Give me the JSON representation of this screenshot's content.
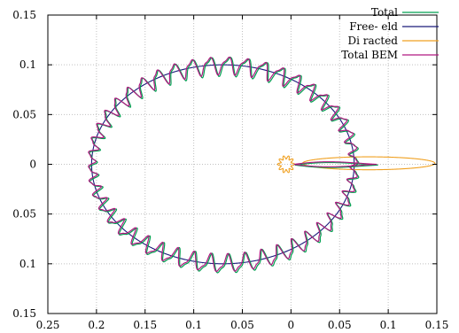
{
  "chart_data": {
    "type": "line",
    "title": "",
    "xlabel": "",
    "ylabel": "",
    "xlim": [
      -0.25,
      0.15
    ],
    "ylim": [
      -0.15,
      0.15
    ],
    "grid": true,
    "legend_position": "top-right",
    "x_ticks": [
      -0.25,
      -0.2,
      -0.15,
      -0.1,
      -0.05,
      0,
      0.05,
      0.1,
      0.15
    ],
    "y_ticks": [
      -0.15,
      -0.1,
      -0.05,
      0,
      0.05,
      0.1,
      0.15
    ],
    "x_tick_labels": [
      "0.25",
      "0.2",
      "0.15",
      "0.1",
      "0.05",
      "0",
      "0.05",
      "0.1",
      "0.15"
    ],
    "y_tick_labels": [
      "0.15",
      "0.1",
      "0.05",
      "0",
      "0.05",
      "0.1",
      "0.15"
    ],
    "series": [
      {
        "name": "Total",
        "color": "#00a050",
        "shape": "free-field-with-ripples",
        "ripple": 0.0085,
        "lobes": 46,
        "offset": [
          0.0012,
          -0.0008
        ]
      },
      {
        "name": "Free- eld",
        "color": "#1a1a7a",
        "shape": "free-field",
        "center": [
          -0.07,
          0
        ],
        "semi_axes": [
          0.135,
          0.1
        ]
      },
      {
        "name": "Di racted",
        "color": "#f0a020",
        "shape": "diffracted",
        "ellipse_center": [
          0.08,
          0.001
        ],
        "ellipse_semi_axes": [
          0.068,
          0.0065
        ],
        "star_center": [
          -0.005,
          0
        ],
        "star_radius": 0.007,
        "star_lobes": 10
      },
      {
        "name": "Total BEM",
        "color": "#b01880",
        "shape": "free-field-with-ripples",
        "ripple": 0.008,
        "lobes": 46,
        "offset": [
          0,
          0
        ]
      }
    ]
  }
}
